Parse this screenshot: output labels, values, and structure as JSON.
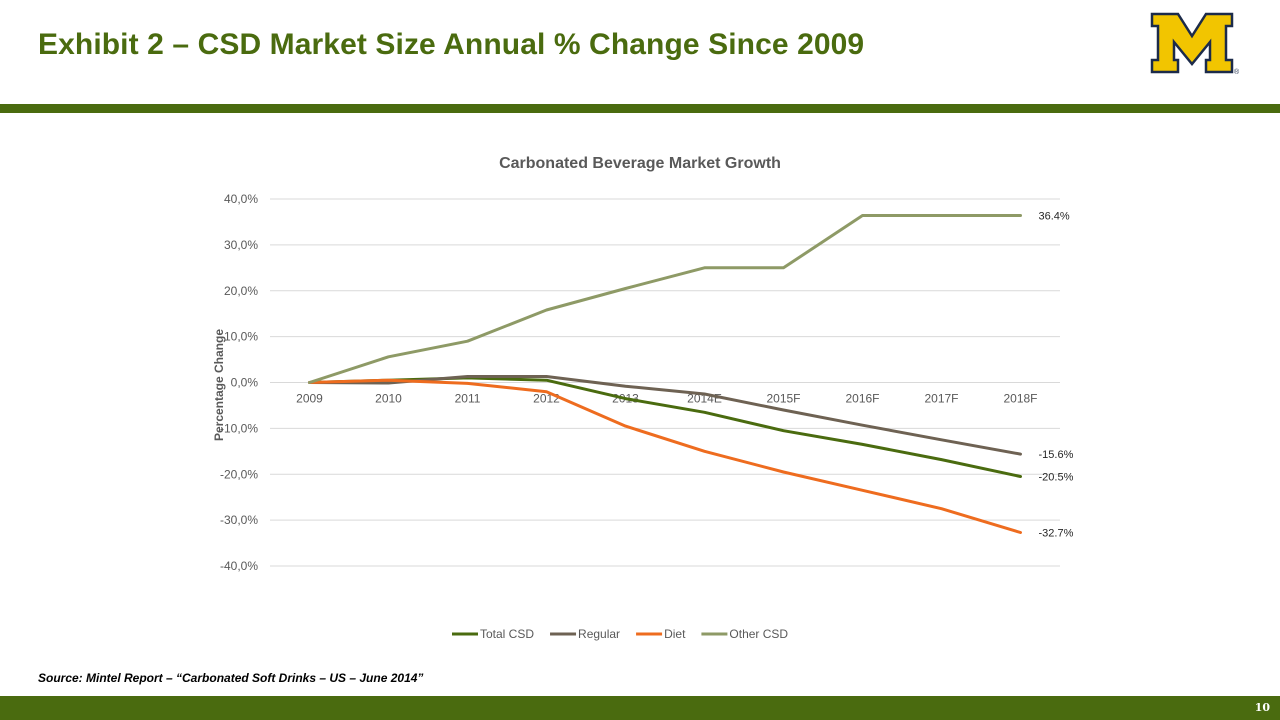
{
  "slide": {
    "title": "Exhibit 2 – CSD Market Size Annual % Change Since 2009",
    "source": "Source: Mintel Report – “Carbonated Soft Drinks – US – June 2014”",
    "page_number": "10",
    "logo_text": "M",
    "logo_mark": "®",
    "colors": {
      "brand_green": "#4a6b0f",
      "logo_yellow": "#f2c500",
      "logo_blue": "#1c2b4a"
    }
  },
  "chart_data": {
    "type": "line",
    "title": "Carbonated Beverage Market Growth",
    "ylabel": "Percentage Change",
    "xlabel": "",
    "categories": [
      "2009",
      "2010",
      "2011",
      "2012",
      "2013",
      "2014E",
      "2015F",
      "2016F",
      "2017F",
      "2018F"
    ],
    "y_ticks": [
      "40,0%",
      "30,0%",
      "20,0%",
      "10,0%",
      "0,0%",
      "-10,0%",
      "-20,0%",
      "-30,0%",
      "-40,0%"
    ],
    "ylim": [
      -40,
      40
    ],
    "grid": true,
    "legend_position": "bottom",
    "series": [
      {
        "name": "Total CSD",
        "color": "#4a6b0f",
        "values": [
          0,
          0.5,
          1.0,
          0.5,
          -3.5,
          -6.5,
          -10.5,
          -13.5,
          -16.8,
          -20.5
        ],
        "end_label": "-20.5%"
      },
      {
        "name": "Regular",
        "color": "#6e6253",
        "values": [
          0,
          -0.1,
          1.3,
          1.3,
          -0.8,
          -2.5,
          -6.0,
          -9.3,
          -12.5,
          -15.6
        ],
        "end_label": "-15.6%"
      },
      {
        "name": "Diet",
        "color": "#ee6c1f",
        "values": [
          0,
          0.5,
          -0.2,
          -2.0,
          -9.5,
          -15.0,
          -19.5,
          -23.5,
          -27.5,
          -32.7
        ],
        "end_label": "-32.7%"
      },
      {
        "name": "Other CSD",
        "color": "#8e9a66",
        "values": [
          0,
          5.6,
          9.0,
          15.8,
          20.5,
          25.0,
          25.0,
          36.4,
          36.4,
          36.4
        ],
        "end_label": "36.4%"
      }
    ]
  }
}
